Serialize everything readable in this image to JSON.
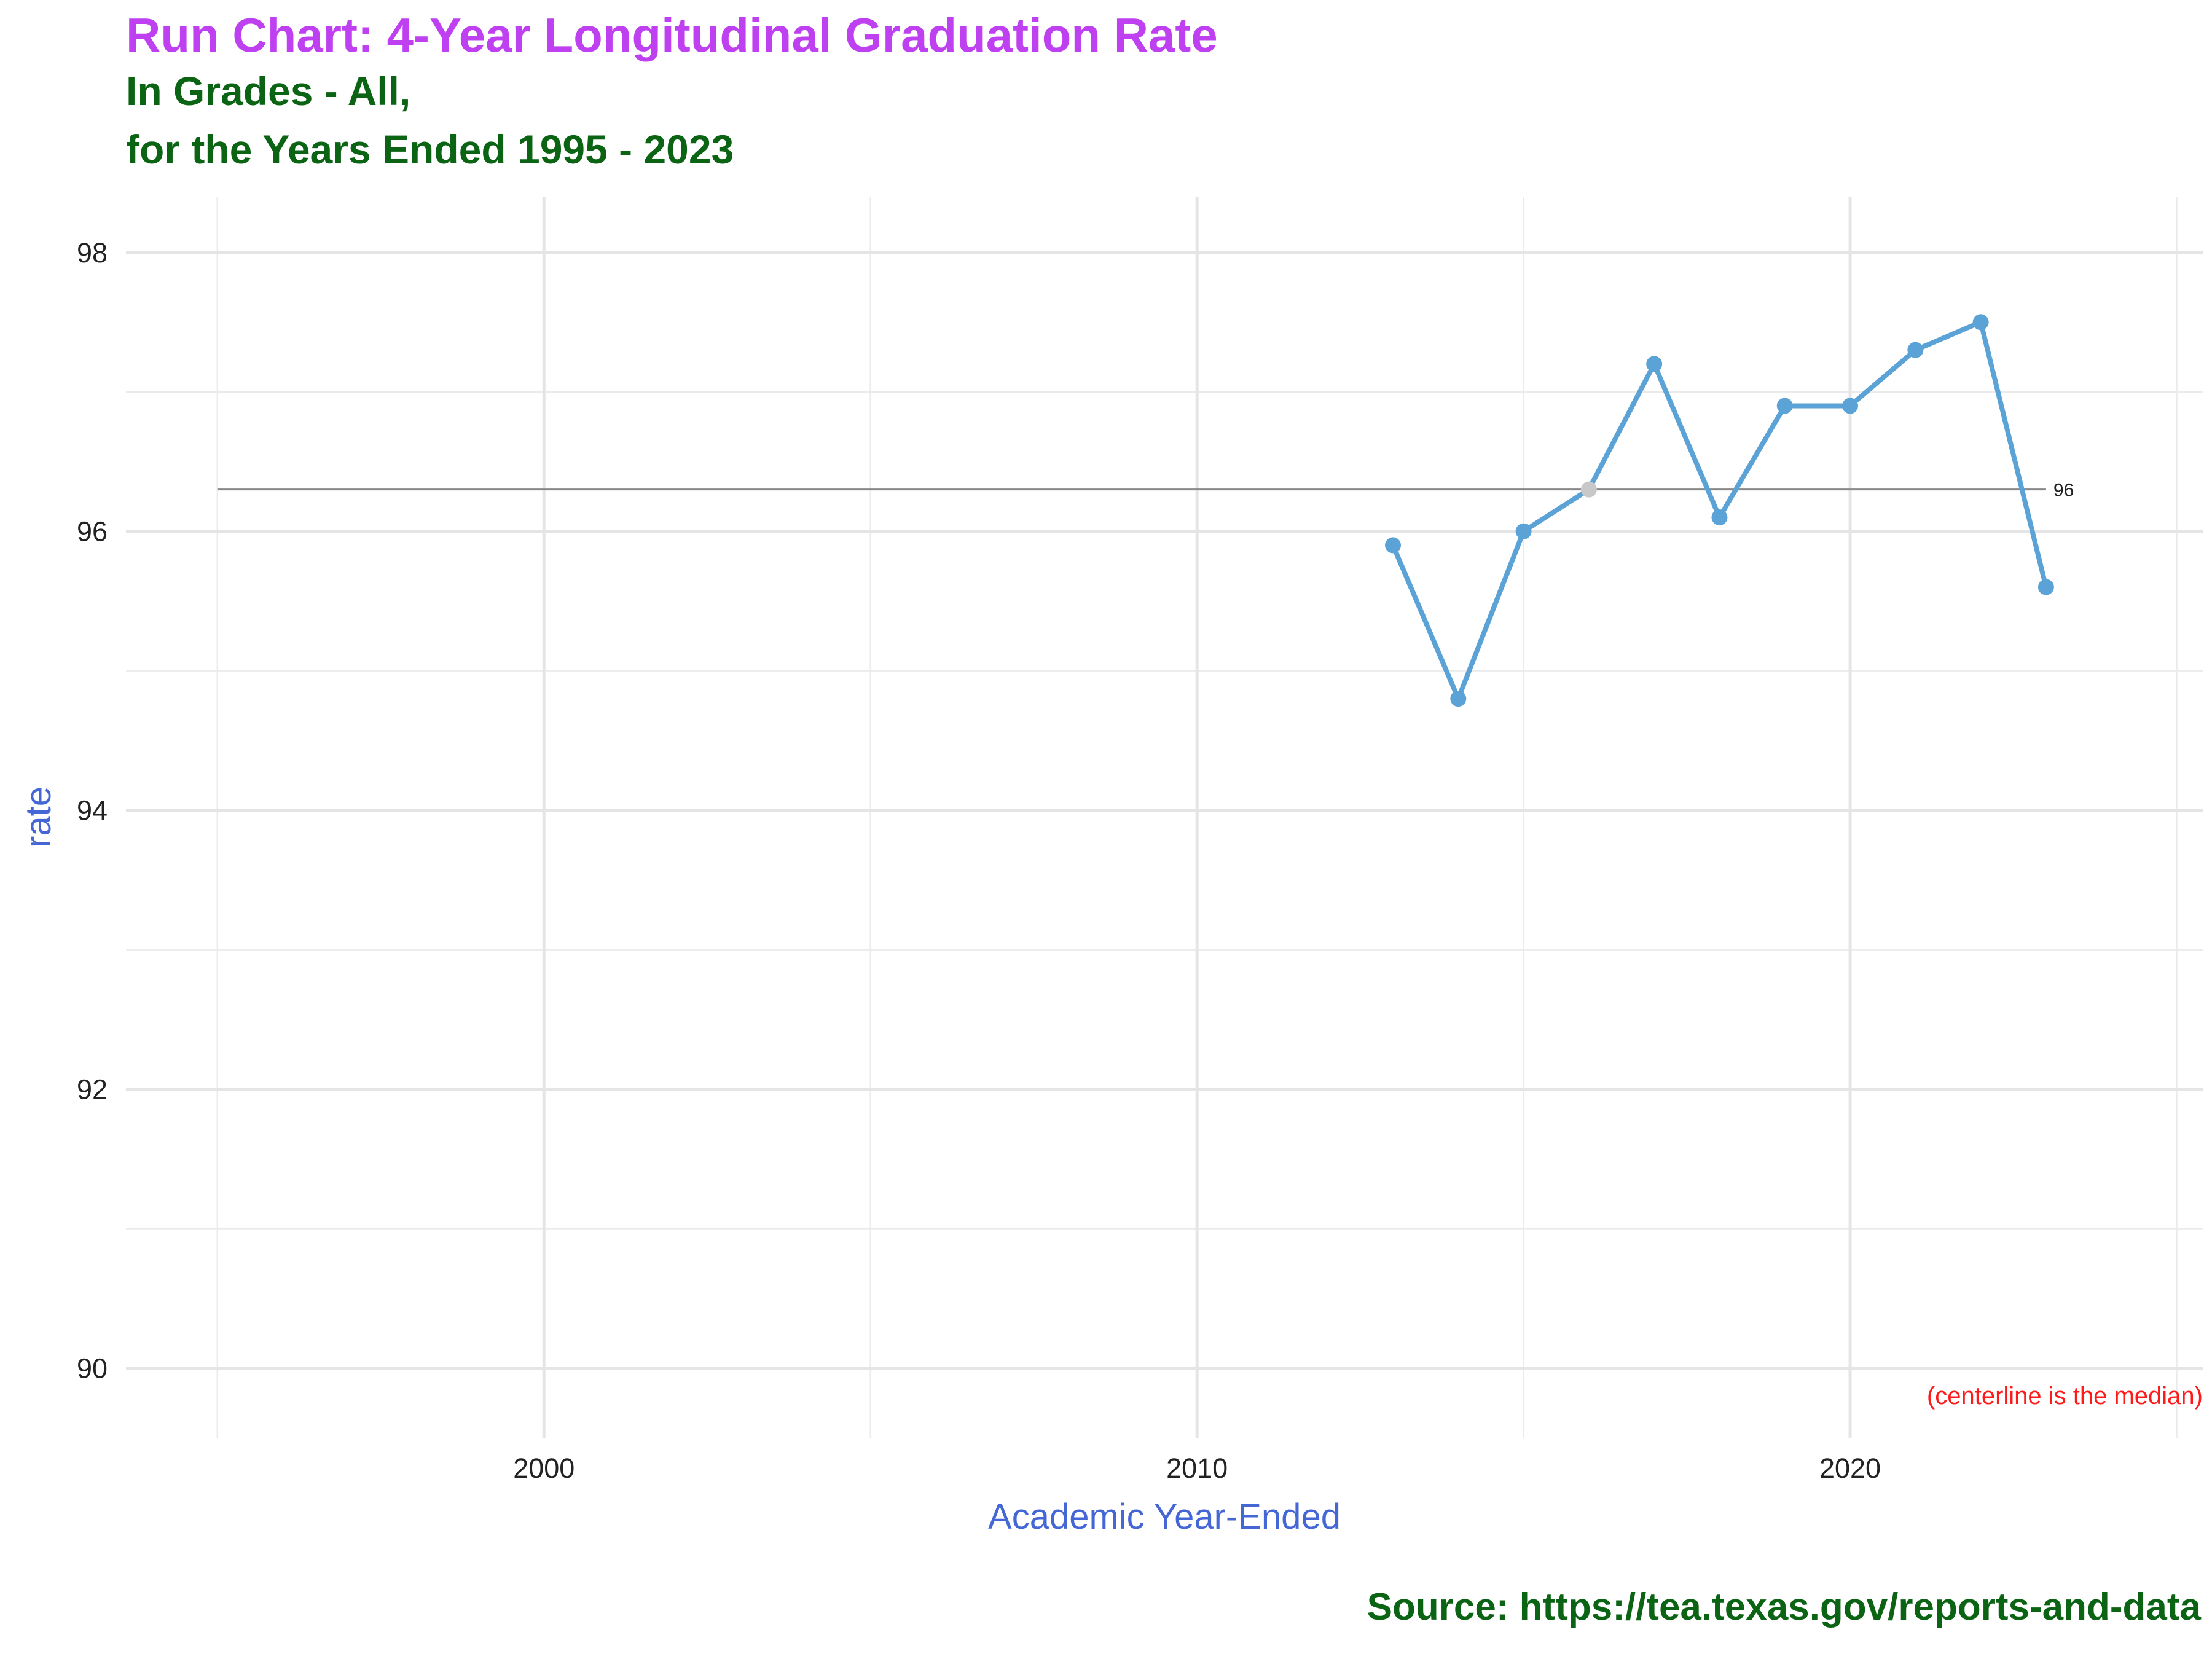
{
  "title": "Run Chart: 4-Year Longitudinal Graduation Rate",
  "subtitle_line1": "In Grades - All,",
  "subtitle_line2": "for the Years Ended 1995 - 2023",
  "caption": "Source:  https://tea.texas.gov/reports-and-data",
  "chart_data": {
    "type": "line",
    "xlabel": "Academic Year-Ended",
    "ylabel": "rate",
    "xlim": [
      1993.6,
      2025.4
    ],
    "ylim": [
      89.5,
      98.4
    ],
    "x_ticks": [
      2000,
      2010,
      2020
    ],
    "y_ticks": [
      90,
      92,
      94,
      96,
      98
    ],
    "grid": true,
    "series": [
      {
        "color": "#5BA3D6",
        "x": [
          2013,
          2014,
          2015,
          2016,
          2017,
          2018,
          2019,
          2020,
          2021,
          2022,
          2023
        ],
        "values": [
          95.9,
          94.8,
          96.0,
          96.3,
          97.2,
          96.1,
          96.9,
          96.9,
          97.3,
          97.5,
          95.6
        ],
        "highlight_index": 3,
        "highlight_color": "#C8C8C8"
      }
    ],
    "centerline": {
      "value": 96.3,
      "x_range": [
        1995,
        2023
      ],
      "label": "96",
      "color": "#888888"
    },
    "annotation": "(centerline is the median)"
  }
}
